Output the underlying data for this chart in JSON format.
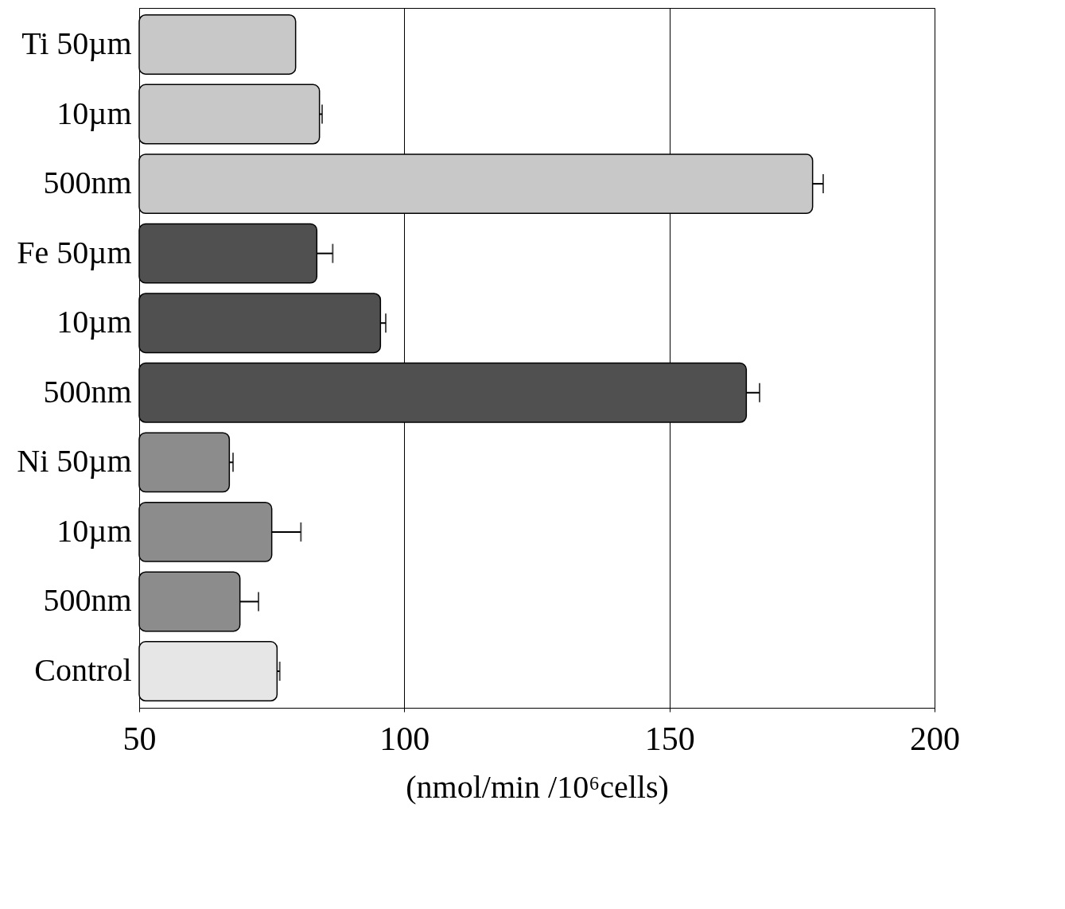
{
  "chart_data": {
    "type": "bar",
    "orientation": "horizontal",
    "categories": [
      "Ti  50µm",
      "10µm",
      "500nm",
      "Fe  50µm",
      "10µm",
      "500nm",
      "Ni  50µm",
      "10µm",
      "500nm",
      "Control"
    ],
    "values": [
      79.5,
      84,
      177,
      83.5,
      95.5,
      164.5,
      67,
      75,
      69,
      76
    ],
    "colors": [
      "#c8c8c8",
      "#c8c8c8",
      "#c8c8c8",
      "#505050",
      "#505050",
      "#505050",
      "#8c8c8c",
      "#8c8c8c",
      "#8c8c8c",
      "#e6e6e6"
    ],
    "errors": [
      null,
      [
        84,
        84.5
      ],
      [
        177,
        179
      ],
      [
        83.5,
        86.5
      ],
      [
        95.5,
        96.5
      ],
      [
        164.5,
        167
      ],
      [
        67,
        67.7
      ],
      [
        75,
        80.5
      ],
      [
        69,
        72.5
      ],
      [
        76,
        76.5
      ]
    ],
    "xlim": [
      50,
      200
    ],
    "xticks": [
      50,
      100,
      150,
      200
    ],
    "grid": "x",
    "xlabel": "(nmol/min /10⁶cells)"
  }
}
